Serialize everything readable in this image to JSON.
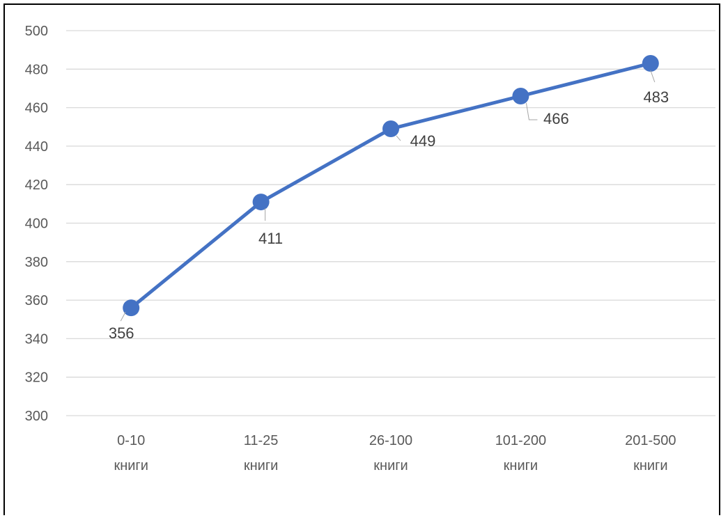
{
  "chart_data": {
    "type": "line",
    "title": "",
    "xlabel": "",
    "ylabel": "",
    "categories": [
      [
        "0-10",
        "книги"
      ],
      [
        "11-25",
        "книги"
      ],
      [
        "26-100",
        "книги"
      ],
      [
        "101-200",
        "книги"
      ],
      [
        "201-500",
        "книги"
      ]
    ],
    "series": [
      {
        "values": [
          356,
          411,
          449,
          466,
          483
        ],
        "data_labels": [
          "356",
          "411",
          "449",
          "466",
          "483"
        ]
      }
    ],
    "ylim": [
      300,
      500
    ],
    "yticks": [
      300,
      320,
      340,
      360,
      380,
      400,
      420,
      440,
      460,
      480,
      500
    ],
    "grid": true,
    "legend": "none",
    "colors": {
      "line": "#4472C4",
      "marker": "#4472C4",
      "grid": "#D9D9D9",
      "text": "#595959"
    }
  }
}
